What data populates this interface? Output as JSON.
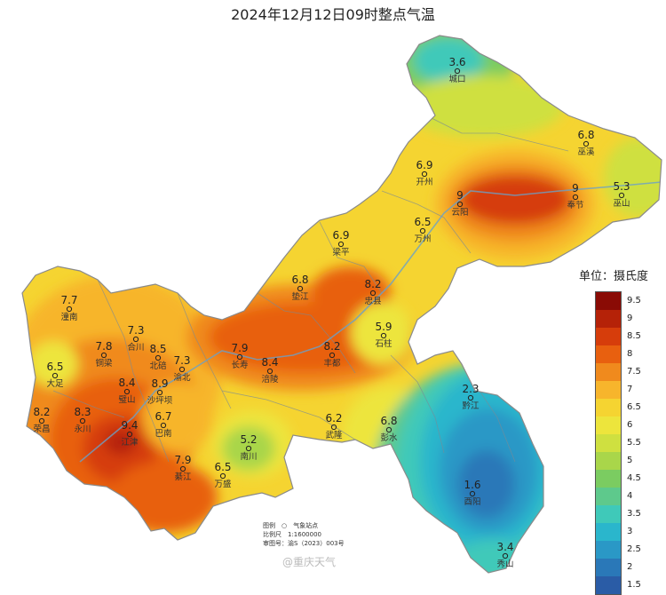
{
  "title": "2024年12月12日09时整点气温",
  "legend": {
    "title": "单位：摄氏度",
    "ticks": [
      "9.5",
      "9",
      "8.5",
      "8",
      "7.5",
      "7",
      "6.5",
      "6",
      "5.5",
      "5",
      "4.5",
      "4",
      "3.5",
      "3",
      "2.5",
      "2",
      "1.5"
    ],
    "colors": [
      "#8a0b05",
      "#b52208",
      "#d63d0b",
      "#e8600f",
      "#f08a1d",
      "#f7b52c",
      "#f5d431",
      "#ede53c",
      "#cfe040",
      "#a9d64a",
      "#7bcc61",
      "#5ec98c",
      "#3fc9b9",
      "#2ab6cc",
      "#2a98c6",
      "#2a78b8",
      "#2a5ca6"
    ]
  },
  "stations": [
    {
      "name": "城口",
      "value": "3.6"
    },
    {
      "name": "巫溪",
      "value": "6.8"
    },
    {
      "name": "开州",
      "value": "6.9"
    },
    {
      "name": "云阳",
      "value": "9"
    },
    {
      "name": "奉节",
      "value": "9"
    },
    {
      "name": "巫山",
      "value": "5.3"
    },
    {
      "name": "万州",
      "value": "6.5"
    },
    {
      "name": "梁平",
      "value": "6.9"
    },
    {
      "name": "垫江",
      "value": "6.8"
    },
    {
      "name": "忠县",
      "value": "8.2"
    },
    {
      "name": "石柱",
      "value": "5.9"
    },
    {
      "name": "潼南",
      "value": "7.7"
    },
    {
      "name": "合川",
      "value": "7.3"
    },
    {
      "name": "铜梁",
      "value": "7.8"
    },
    {
      "name": "北碚",
      "value": "8.5"
    },
    {
      "name": "渝北",
      "value": "7.3"
    },
    {
      "name": "长寿",
      "value": "7.9"
    },
    {
      "name": "涪陵",
      "value": "8.4"
    },
    {
      "name": "丰都",
      "value": "8.2"
    },
    {
      "name": "大足",
      "value": "6.5"
    },
    {
      "name": "璧山",
      "value": "8.4"
    },
    {
      "name": "沙坪坝",
      "value": "8.9"
    },
    {
      "name": "荣昌",
      "value": "8.2"
    },
    {
      "name": "永川",
      "value": "8.3"
    },
    {
      "name": "江津",
      "value": "9.4"
    },
    {
      "name": "巴南",
      "value": "6.7"
    },
    {
      "name": "武隆",
      "value": "6.2"
    },
    {
      "name": "彭水",
      "value": "6.8"
    },
    {
      "name": "黔江",
      "value": "2.3"
    },
    {
      "name": "南川",
      "value": "5.2"
    },
    {
      "name": "綦江",
      "value": "7.9"
    },
    {
      "name": "万盛",
      "value": "6.5"
    },
    {
      "name": "酉阳",
      "value": "1.6"
    },
    {
      "name": "秀山",
      "value": "3.4"
    }
  ],
  "map_info": [
    "图例　○　气象站点",
    "比例尺　1:1600000",
    "审图号：渝S（2023）003号"
  ],
  "watermark": "@重庆天气"
}
